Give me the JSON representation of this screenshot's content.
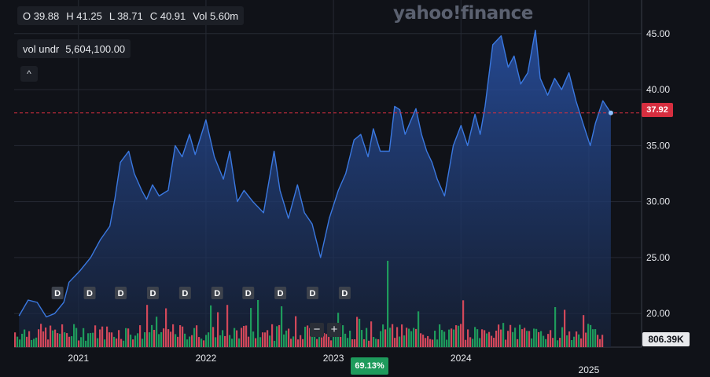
{
  "ohlc": {
    "o": "O 39.88",
    "h": "H 41.25",
    "l": "L 38.71",
    "c": "C 40.91",
    "vol": "Vol 5.60m"
  },
  "volume_label": {
    "name": "vol undr",
    "value": "5,604,100.00"
  },
  "collapse_icon": "chevron-up-icon",
  "collapse_glyph": "^",
  "logo": "yahoo!finance",
  "price_tag": "37.92",
  "volume_tag": "806.39K",
  "percent_tag": "69.13%",
  "zoom": {
    "minus": "−",
    "plus": "+"
  },
  "colors": {
    "line": "#3a78e0",
    "up_volume": "#1e9b5c",
    "down_volume": "#d2485a",
    "price_tag": "#d62e3f",
    "percent_tag": "#1e9b5c",
    "dividend_badge": "#3d424c"
  },
  "chart_data": {
    "type": "area",
    "ylim": [
      17,
      48
    ],
    "x_range": [
      "2020-07",
      "2025-06"
    ],
    "y_ticks": [
      "45.00",
      "40.00",
      "35.00",
      "30.00",
      "25.00",
      "20.00"
    ],
    "x_ticks": [
      "2021",
      "2022",
      "2023",
      "2024",
      "2025"
    ],
    "grid": true,
    "last_price_line": 37.92,
    "dividend_markers": [
      "D",
      "D",
      "D",
      "D",
      "D",
      "D",
      "D",
      "D",
      "D",
      "D"
    ],
    "dividend_dates": [
      "2020-11",
      "2021-02",
      "2021-05",
      "2021-08",
      "2021-11",
      "2022-02",
      "2022-05",
      "2022-08",
      "2022-11",
      "2023-02"
    ],
    "price_series": [
      [
        "2020-07-15",
        19.8
      ],
      [
        "2020-08-10",
        21.2
      ],
      [
        "2020-09-05",
        21.0
      ],
      [
        "2020-10-01",
        19.7
      ],
      [
        "2020-10-25",
        20.0
      ],
      [
        "2020-11-20",
        21.0
      ],
      [
        "2020-12-05",
        22.8
      ],
      [
        "2021-01-05",
        23.8
      ],
      [
        "2021-02-05",
        25.0
      ],
      [
        "2021-03-05",
        26.6
      ],
      [
        "2021-04-01",
        27.8
      ],
      [
        "2021-04-15",
        30.2
      ],
      [
        "2021-05-01",
        33.5
      ],
      [
        "2021-05-25",
        34.5
      ],
      [
        "2021-06-10",
        32.5
      ],
      [
        "2021-07-01",
        31.0
      ],
      [
        "2021-07-15",
        30.2
      ],
      [
        "2021-08-01",
        31.5
      ],
      [
        "2021-08-20",
        30.5
      ],
      [
        "2021-09-15",
        31.0
      ],
      [
        "2021-10-05",
        35.0
      ],
      [
        "2021-10-25",
        34.0
      ],
      [
        "2021-11-15",
        36.0
      ],
      [
        "2021-12-01",
        34.2
      ],
      [
        "2022-01-01",
        37.3
      ],
      [
        "2022-01-25",
        34.0
      ],
      [
        "2022-02-20",
        32.0
      ],
      [
        "2022-03-10",
        34.5
      ],
      [
        "2022-04-01",
        30.0
      ],
      [
        "2022-04-20",
        31.0
      ],
      [
        "2022-05-15",
        30.0
      ],
      [
        "2022-06-15",
        29.0
      ],
      [
        "2022-07-15",
        34.5
      ],
      [
        "2022-08-01",
        31.0
      ],
      [
        "2022-08-25",
        28.5
      ],
      [
        "2022-09-20",
        31.5
      ],
      [
        "2022-10-10",
        29.0
      ],
      [
        "2022-11-01",
        28.0
      ],
      [
        "2022-11-25",
        25.0
      ],
      [
        "2022-12-20",
        28.5
      ],
      [
        "2023-01-15",
        31.0
      ],
      [
        "2023-02-05",
        32.5
      ],
      [
        "2023-03-01",
        35.5
      ],
      [
        "2023-03-20",
        36.0
      ],
      [
        "2023-04-10",
        34.0
      ],
      [
        "2023-04-25",
        36.5
      ],
      [
        "2023-05-15",
        34.5
      ],
      [
        "2023-06-10",
        34.5
      ],
      [
        "2023-06-25",
        38.5
      ],
      [
        "2023-07-10",
        38.2
      ],
      [
        "2023-07-25",
        36.0
      ],
      [
        "2023-08-10",
        37.2
      ],
      [
        "2023-08-25",
        38.3
      ],
      [
        "2023-09-10",
        36.0
      ],
      [
        "2023-09-25",
        34.5
      ],
      [
        "2023-10-10",
        33.5
      ],
      [
        "2023-10-25",
        32.0
      ],
      [
        "2023-11-15",
        30.5
      ],
      [
        "2023-12-10",
        35.0
      ],
      [
        "2024-01-01",
        36.8
      ],
      [
        "2024-01-20",
        35.0
      ],
      [
        "2024-02-10",
        37.8
      ],
      [
        "2024-02-25",
        36.0
      ],
      [
        "2024-03-10",
        38.5
      ],
      [
        "2024-04-01",
        44.0
      ],
      [
        "2024-04-25",
        44.8
      ],
      [
        "2024-05-15",
        42.0
      ],
      [
        "2024-06-01",
        43.0
      ],
      [
        "2024-06-20",
        40.5
      ],
      [
        "2024-07-10",
        41.5
      ],
      [
        "2024-08-01",
        45.3
      ],
      [
        "2024-08-15",
        41.0
      ],
      [
        "2024-09-05",
        39.5
      ],
      [
        "2024-09-25",
        41.0
      ],
      [
        "2024-10-15",
        40.0
      ],
      [
        "2024-11-05",
        41.5
      ],
      [
        "2024-11-25",
        39.0
      ],
      [
        "2024-12-15",
        37.0
      ],
      [
        "2025-01-05",
        35.0
      ],
      [
        "2025-01-20",
        37.0
      ],
      [
        "2025-02-10",
        39.0
      ],
      [
        "2025-03-05",
        37.92
      ]
    ]
  }
}
